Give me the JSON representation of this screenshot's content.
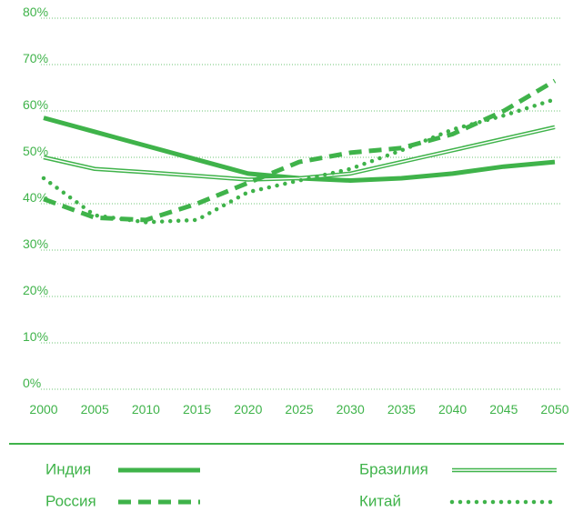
{
  "chart_data": {
    "type": "line",
    "x": [
      2000,
      2005,
      2010,
      2015,
      2020,
      2025,
      2030,
      2035,
      2040,
      2045,
      2050
    ],
    "xlim": [
      2000,
      2050
    ],
    "xticks": [
      2000,
      2005,
      2010,
      2015,
      2020,
      2025,
      2030,
      2035,
      2040,
      2045,
      2050
    ],
    "ylim": [
      0,
      80
    ],
    "yticks": [
      {
        "value": 0,
        "label": "0%"
      },
      {
        "value": 10,
        "label": "10%"
      },
      {
        "value": 20,
        "label": "20%"
      },
      {
        "value": 30,
        "label": "30%"
      },
      {
        "value": 40,
        "label": "40%"
      },
      {
        "value": 50,
        "label": "50%"
      },
      {
        "value": 60,
        "label": "60%"
      },
      {
        "value": 70,
        "label": "70%"
      },
      {
        "value": 80,
        "label": "80%"
      }
    ],
    "grid": true,
    "series": [
      {
        "name": "Индия",
        "color": "#3fb34a",
        "style": "solid",
        "values": [
          58.5,
          55.5,
          52.5,
          49.5,
          46.5,
          45.5,
          45,
          45.5,
          46.5,
          48,
          49
        ]
      },
      {
        "name": "Бразилия",
        "color": "#3fb34a",
        "style": "double",
        "values": [
          50,
          47.5,
          46.8,
          46,
          45.2,
          45.5,
          46.5,
          49,
          51.5,
          54,
          56.5
        ]
      },
      {
        "name": "Россия",
        "color": "#3fb34a",
        "style": "dashed",
        "values": [
          41,
          37,
          36.5,
          40,
          44.5,
          49,
          51,
          52,
          55,
          60,
          66.5
        ]
      },
      {
        "name": "Китай",
        "color": "#3fb34a",
        "style": "dotted",
        "values": [
          45.5,
          37.5,
          36,
          36.5,
          42.5,
          45,
          47.5,
          51.5,
          56,
          59,
          62.5
        ]
      }
    ]
  }
}
